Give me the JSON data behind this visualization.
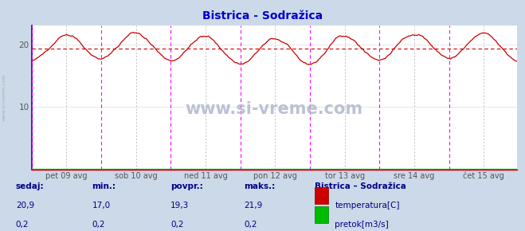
{
  "title": "Bistrica - Sodražica",
  "title_color": "#0000cc",
  "bg_color": "#ccd9e8",
  "plot_bg_color": "#ffffff",
  "x_labels": [
    "pet 09 avg",
    "sob 10 avg",
    "ned 11 avg",
    "pon 12 avg",
    "tor 13 avg",
    "sre 14 avg",
    "čet 15 avg"
  ],
  "y_ticks": [
    10,
    20
  ],
  "y_min": 0,
  "y_max": 23,
  "avg_line_y": 19.3,
  "avg_line_color": "#cc0000",
  "grid_color": "#dddddd",
  "magenta_line_color": "#ff00ff",
  "temp_line_color": "#cc0000",
  "flow_line_color": "#00aa00",
  "watermark_text": "www.si-vreme.com",
  "watermark_color": "#aaaacc",
  "sidebar_color": "#aaaaaa",
  "n_points": 336,
  "temp_min": 17.0,
  "temp_max": 21.9,
  "temp_avg": 19.3,
  "temp_now": 20.9,
  "flow_min": 0.2,
  "flow_max": 0.2,
  "flow_avg": 0.2,
  "flow_now": 0.2,
  "legend_title": "Bistrica – Sodražica",
  "legend_title_color": "#000088",
  "label_color": "#000088",
  "value_color": "#000088",
  "footer_bg": "#ccd9e8",
  "left_spine_color": "#0000cc",
  "bottom_spine_color": "#cc0000"
}
